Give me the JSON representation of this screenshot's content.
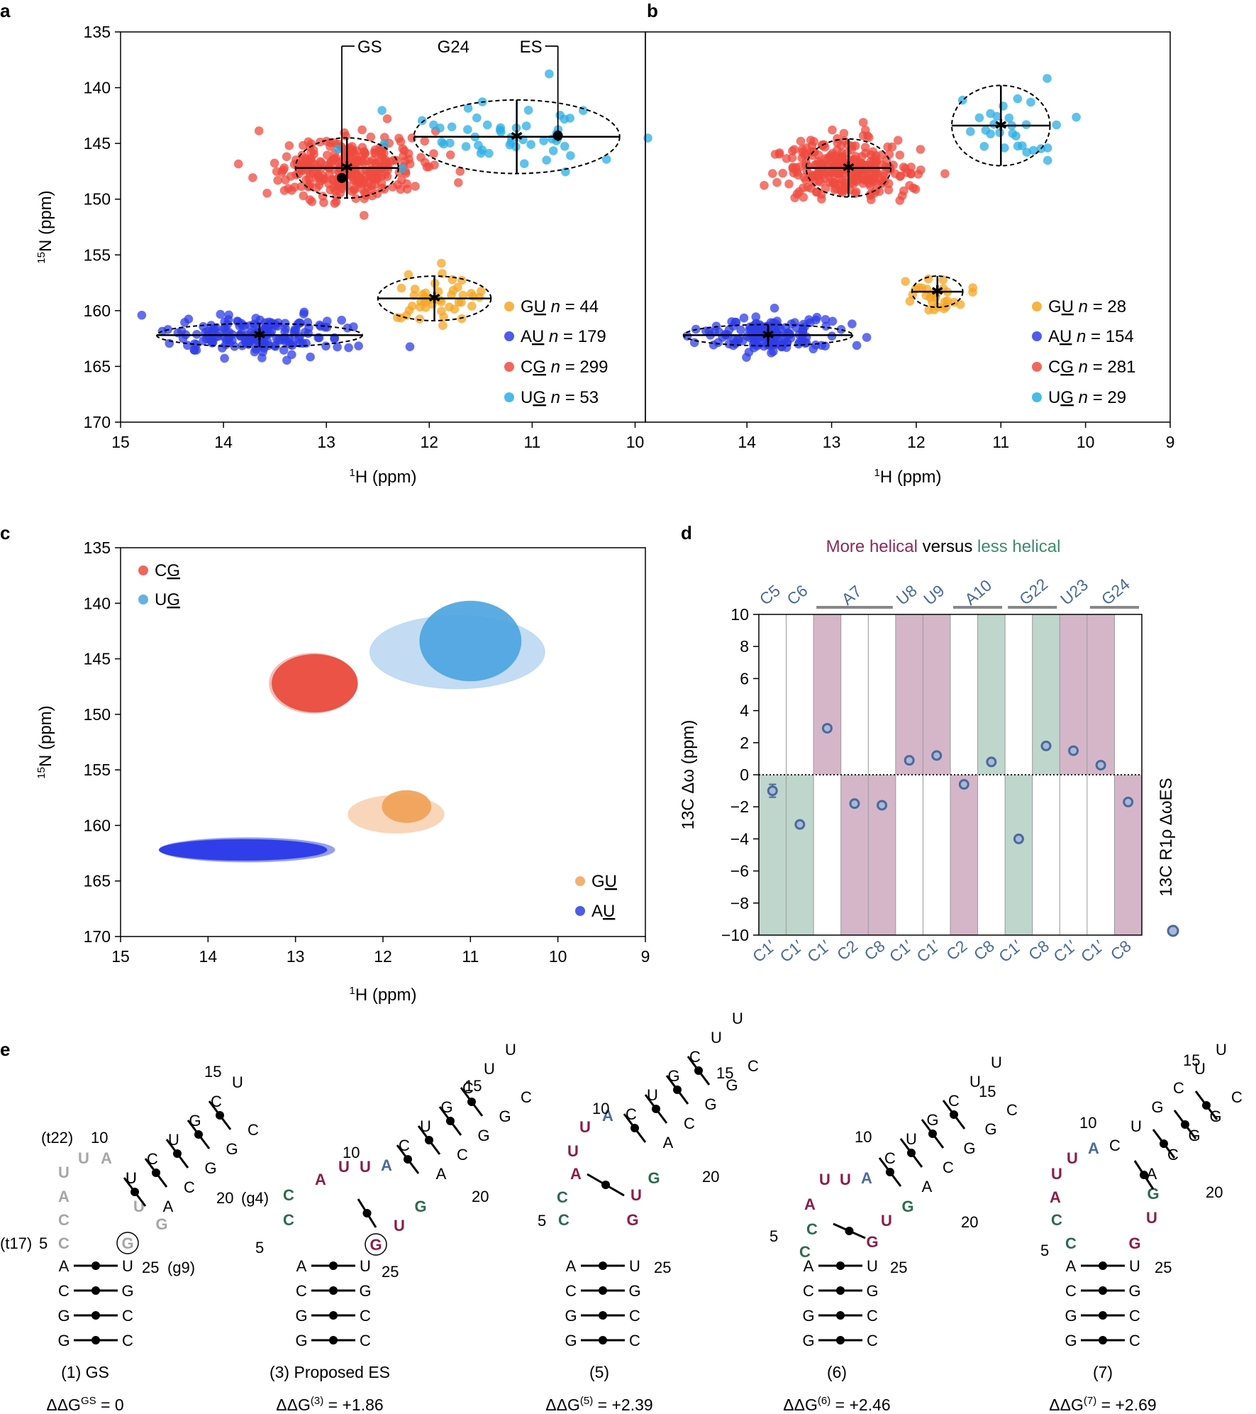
{
  "panels": {
    "a": "a",
    "b": "b",
    "c": "c",
    "d": "d",
    "e": "e"
  },
  "axes": {
    "ylabel_N15": "15N (ppm)",
    "ylabel_N15_sup": "15",
    "ylabel_N15_rest": "N (ppm)",
    "xlabel_H1_sup": "1",
    "xlabel_H1_rest": "H (ppm)"
  },
  "chart_data": [
    {
      "id": "a",
      "type": "scatter",
      "title": "",
      "xlabel": "1H (ppm)",
      "ylabel": "15N (ppm)",
      "xlim": [
        15,
        9.9
      ],
      "ylim": [
        135,
        170
      ],
      "xticks": [
        15,
        14,
        13,
        12,
        11,
        10
      ],
      "yticks": [
        135,
        140,
        145,
        150,
        155,
        160,
        165,
        170
      ],
      "annotations": [
        "GS",
        "G24",
        "ES"
      ],
      "series": [
        {
          "name": "GU",
          "underline": "U",
          "n": 44,
          "color": "#f5a623",
          "center": [
            11.95,
            158.9
          ],
          "semi_axes": [
            0.55,
            2.0
          ],
          "sd": [
            0.22,
            1.2
          ],
          "count": 44
        },
        {
          "name": "AU",
          "underline": "U",
          "n": 179,
          "color": "#2f3ee8",
          "center": [
            13.65,
            162.2
          ],
          "semi_axes": [
            1.0,
            1.05
          ],
          "sd": [
            0.42,
            0.9
          ],
          "count": 179
        },
        {
          "name": "CG",
          "underline": "G",
          "n": 299,
          "color": "#ef4b3f",
          "center": [
            12.8,
            147.2
          ],
          "semi_axes": [
            0.5,
            2.7
          ],
          "sd": [
            0.38,
            1.3
          ],
          "count": 299
        },
        {
          "name": "UG",
          "underline": "G",
          "n": 53,
          "color": "#2aaee4",
          "center": [
            11.15,
            144.4
          ],
          "semi_axes": [
            1.0,
            3.3
          ],
          "sd": [
            0.55,
            1.4
          ],
          "count": 53
        }
      ],
      "points": [
        {
          "label": "GS",
          "x": 12.85,
          "y": 148.1
        },
        {
          "label": "ES",
          "x": 10.75,
          "y": 144.3
        }
      ]
    },
    {
      "id": "b",
      "type": "scatter",
      "xlabel": "1H (ppm)",
      "ylabel": "",
      "xlim": [
        15.2,
        9
      ],
      "ylim": [
        135,
        170
      ],
      "xticks": [
        14,
        13,
        12,
        11,
        10,
        9
      ],
      "series": [
        {
          "name": "GU",
          "underline": "U",
          "n": 28,
          "color": "#f5a623",
          "center": [
            11.75,
            158.3
          ],
          "semi_axes": [
            0.3,
            1.4
          ],
          "sd": [
            0.2,
            1.0
          ],
          "count": 28
        },
        {
          "name": "AU",
          "underline": "U",
          "n": 154,
          "color": "#2f3ee8",
          "center": [
            13.75,
            162.2
          ],
          "semi_axes": [
            1.0,
            0.95
          ],
          "sd": [
            0.4,
            0.85
          ],
          "count": 154
        },
        {
          "name": "CG",
          "underline": "G",
          "n": 281,
          "color": "#ef4b3f",
          "center": [
            12.8,
            147.2
          ],
          "semi_axes": [
            0.5,
            2.6
          ],
          "sd": [
            0.38,
            1.3
          ],
          "count": 281
        },
        {
          "name": "UG",
          "underline": "G",
          "n": 29,
          "color": "#2aaee4",
          "center": [
            11.0,
            143.4
          ],
          "semi_axes": [
            0.58,
            3.6
          ],
          "sd": [
            0.4,
            1.5
          ],
          "count": 29
        }
      ]
    },
    {
      "id": "c",
      "type": "scatter",
      "xlabel": "1H (ppm)",
      "ylabel": "15N (ppm)",
      "xlim": [
        15,
        9
      ],
      "ylim": [
        135,
        170
      ],
      "xticks": [
        15,
        14,
        13,
        12,
        11,
        10,
        9
      ],
      "yticks": [
        135,
        140,
        145,
        150,
        155,
        160,
        165,
        170
      ],
      "legend_top": [
        {
          "name": "CG",
          "underline": "G",
          "color": "#ef4b3f"
        },
        {
          "name": "UG",
          "underline": "G",
          "color": "#4aa3e0"
        }
      ],
      "legend_bottom": [
        {
          "name": "GU",
          "underline": "U",
          "color": "#f0a35a"
        },
        {
          "name": "AU",
          "underline": "U",
          "color": "#2f3ee8"
        }
      ],
      "ellipses": [
        {
          "set": "a",
          "pair": "UG",
          "center": [
            11.15,
            144.4
          ],
          "semi_axes": [
            1.0,
            3.3
          ],
          "color": "#a9cdef",
          "opacity": 0.7
        },
        {
          "set": "b",
          "pair": "UG",
          "center": [
            11.0,
            143.4
          ],
          "semi_axes": [
            0.58,
            3.6
          ],
          "color": "#4aa3e0",
          "opacity": 0.9
        },
        {
          "set": "a",
          "pair": "CG",
          "center": [
            12.8,
            147.2
          ],
          "semi_axes": [
            0.5,
            2.7
          ],
          "color": "#f0a59c",
          "opacity": 0.7
        },
        {
          "set": "b",
          "pair": "CG",
          "center": [
            12.78,
            147.2
          ],
          "semi_axes": [
            0.49,
            2.6
          ],
          "color": "#e94d3f",
          "opacity": 0.95
        },
        {
          "set": "a",
          "pair": "GU",
          "center": [
            11.85,
            159.0
          ],
          "semi_axes": [
            0.55,
            1.7
          ],
          "color": "#f8cfae",
          "opacity": 0.85
        },
        {
          "set": "b",
          "pair": "GU",
          "center": [
            11.73,
            158.3
          ],
          "semi_axes": [
            0.28,
            1.45
          ],
          "color": "#f0a35a",
          "opacity": 0.95
        },
        {
          "set": "a",
          "pair": "AU",
          "center": [
            13.55,
            162.2
          ],
          "semi_axes": [
            1.0,
            1.1
          ],
          "color": "#8a93f1",
          "opacity": 0.9
        },
        {
          "set": "b",
          "pair": "AU",
          "center": [
            13.6,
            162.2
          ],
          "semi_axes": [
            0.96,
            0.95
          ],
          "color": "#2f3ee8",
          "opacity": 1
        }
      ]
    },
    {
      "id": "d",
      "type": "scatter",
      "title_more": "More helical",
      "title_versus": "versus",
      "title_less": "less helical",
      "ylabel": "13C Δω (ppm)",
      "ylim": [
        -10,
        10
      ],
      "yticks": [
        10,
        8,
        6,
        4,
        2,
        0,
        -2,
        -4,
        -6,
        -8,
        -10
      ],
      "legend": "13C R1ρ ΔωES",
      "categories": [
        "C1′",
        "C1′",
        "C1′",
        "C2",
        "C8",
        "C1′",
        "C1′",
        "C2",
        "C8",
        "C1′",
        "C8",
        "C1′",
        "C1′",
        "C8"
      ],
      "residues": [
        {
          "name": "C5",
          "start": 0,
          "end": 0
        },
        {
          "name": "C6",
          "start": 1,
          "end": 1
        },
        {
          "name": "A7",
          "start": 2,
          "end": 4
        },
        {
          "name": "U8",
          "start": 5,
          "end": 5
        },
        {
          "name": "U9",
          "start": 6,
          "end": 6
        },
        {
          "name": "A10",
          "start": 7,
          "end": 8
        },
        {
          "name": "G22",
          "start": 9,
          "end": 10
        },
        {
          "name": "U23",
          "start": 11,
          "end": 11
        },
        {
          "name": "G24",
          "start": 12,
          "end": 13
        }
      ],
      "values": [
        -1.0,
        -3.1,
        2.9,
        -1.8,
        -1.9,
        0.9,
        1.2,
        -0.6,
        0.8,
        -4.0,
        1.8,
        1.5,
        0.6,
        -1.7
      ],
      "errors": [
        0.4,
        0,
        0,
        0,
        0,
        0,
        0,
        0,
        0,
        0,
        0,
        0,
        0,
        0
      ],
      "shading": [
        "less-neg",
        "less-neg",
        "more-pos",
        "more-neg",
        "more-neg",
        "more-pos",
        "more-pos",
        "more-neg",
        "less-pos",
        "less-neg",
        "less-pos",
        "more-pos",
        "more-pos",
        "more-neg"
      ],
      "colors": {
        "more": "#d5b6c9",
        "less": "#bfd6cd",
        "title_more": "#8a2a5a",
        "title_less": "#3f8a6a",
        "marker": "#4a6a9a"
      }
    }
  ],
  "structures": {
    "colors": {
      "grey": "#a6a6a6",
      "maroon": "#8a1d48",
      "green": "#2a6b4e",
      "blue": "#4a6a9a"
    },
    "s1": {
      "caption": "(1) GS",
      "ddg": "ΔΔG",
      "ddg_sup": "GS",
      "ddg_val": " = 0",
      "labels": {
        "t22": "(t22)",
        "t17": "(t17)",
        "g4": "(g4)",
        "g9": "(g9)"
      }
    },
    "s3": {
      "caption": "(3) Proposed ES",
      "ddg": "ΔΔG",
      "ddg_sup": "(3)",
      "ddg_val": " = +1.86"
    },
    "s5": {
      "caption": "(5)",
      "ddg": "ΔΔG",
      "ddg_sup": "(5)",
      "ddg_val": " = +2.39"
    },
    "s6": {
      "caption": "(6)",
      "ddg": "ΔΔG",
      "ddg_sup": "(6)",
      "ddg_val": " = +2.46"
    },
    "s7": {
      "caption": "(7)",
      "ddg": "ΔΔG",
      "ddg_sup": "(7)",
      "ddg_val": " = +2.69"
    },
    "stem_left": [
      "A",
      "C",
      "G",
      "G"
    ],
    "stem_right": [
      "U",
      "G",
      "C",
      "C"
    ],
    "stem_right_s1": [
      "U",
      "G",
      "C",
      "C"
    ],
    "loop_numbers": {
      "n5": "5",
      "n10": "10",
      "n15": "15",
      "n20": "20",
      "n25": "25"
    }
  }
}
